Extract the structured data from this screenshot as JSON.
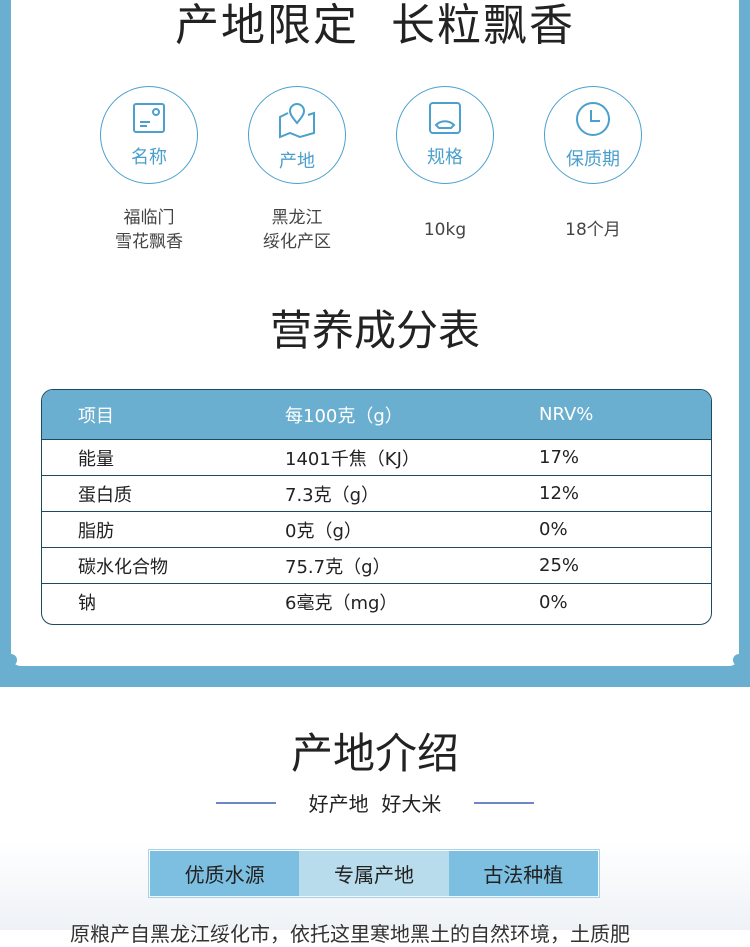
{
  "header": {
    "title": "产地限定  长粒飘香"
  },
  "specs": [
    {
      "icon": "id-card-icon",
      "label": "名称",
      "value": [
        "福临门",
        "雪花飘香"
      ]
    },
    {
      "icon": "map-pin-icon",
      "label": "产地",
      "value": [
        "黑龙江",
        "绥化产区"
      ]
    },
    {
      "icon": "scale-icon",
      "label": "规格",
      "value": [
        "10kg"
      ]
    },
    {
      "icon": "clock-icon",
      "label": "保质期",
      "value": [
        "18个月"
      ]
    }
  ],
  "nutrition": {
    "title": "营养成分表",
    "headers": [
      "项目",
      "每100克（g）",
      "NRV%"
    ],
    "rows": [
      [
        "能量",
        "1401千焦（KJ）",
        "17%"
      ],
      [
        "蛋白质",
        "7.3克（g）",
        "12%"
      ],
      [
        "脂肪",
        "0克（g）",
        "0%"
      ],
      [
        "碳水化合物",
        "75.7克（g）",
        "25%"
      ],
      [
        "钠",
        "6毫克（mg）",
        "0%"
      ]
    ]
  },
  "origin": {
    "title": "产地介绍",
    "subtitle": "好产地  好大米",
    "tabs": [
      "优质水源",
      "专属产地",
      "古法种植"
    ],
    "text": "原粮产自黑龙江绥化市，依托这里寒地黑土的自然环境，土质肥"
  },
  "colors": {
    "accent": "#6aaed0",
    "icon": "#4ba0cd",
    "border": "#1d4a60"
  }
}
